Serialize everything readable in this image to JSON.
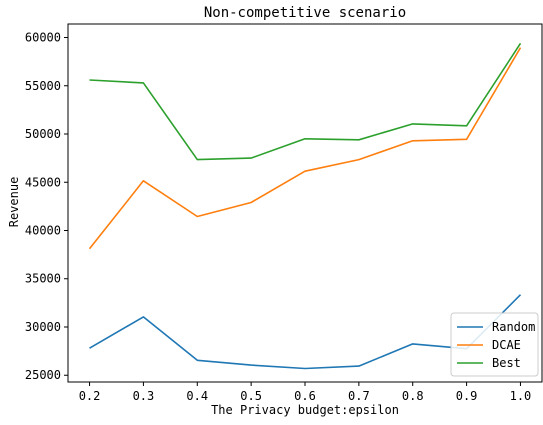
{
  "chart_data": {
    "type": "line",
    "title": "Non-competitive scenario",
    "xlabel": "The Privacy budget:epsilon",
    "ylabel": "Revenue",
    "x": [
      0.2,
      0.3,
      0.4,
      0.5,
      0.6,
      0.7,
      0.8,
      0.9,
      1.0
    ],
    "x_tick_labels": [
      "0.2",
      "0.3",
      "0.4",
      "0.5",
      "0.6",
      "0.7",
      "0.8",
      "0.9",
      "1.0"
    ],
    "y_ticks": [
      25000,
      30000,
      35000,
      40000,
      45000,
      50000,
      55000,
      60000
    ],
    "y_tick_labels": [
      "25000",
      "30000",
      "35000",
      "40000",
      "45000",
      "50000",
      "55000",
      "60000"
    ],
    "xlim": [
      0.16,
      1.04
    ],
    "ylim": [
      24300,
      61400
    ],
    "grid": false,
    "legend_position": "lower-right",
    "series": [
      {
        "name": "Random",
        "color": "#1f77b4",
        "values": [
          27800,
          31050,
          26550,
          26050,
          25700,
          25950,
          28250,
          27750,
          33350
        ]
      },
      {
        "name": "DCAE",
        "color": "#ff7f0e",
        "values": [
          38100,
          45150,
          41450,
          42900,
          46150,
          47350,
          49300,
          49450,
          58950
        ]
      },
      {
        "name": "Best",
        "color": "#2ca02c",
        "values": [
          55600,
          55300,
          47350,
          47500,
          49500,
          49400,
          51050,
          50850,
          59400
        ]
      }
    ]
  }
}
